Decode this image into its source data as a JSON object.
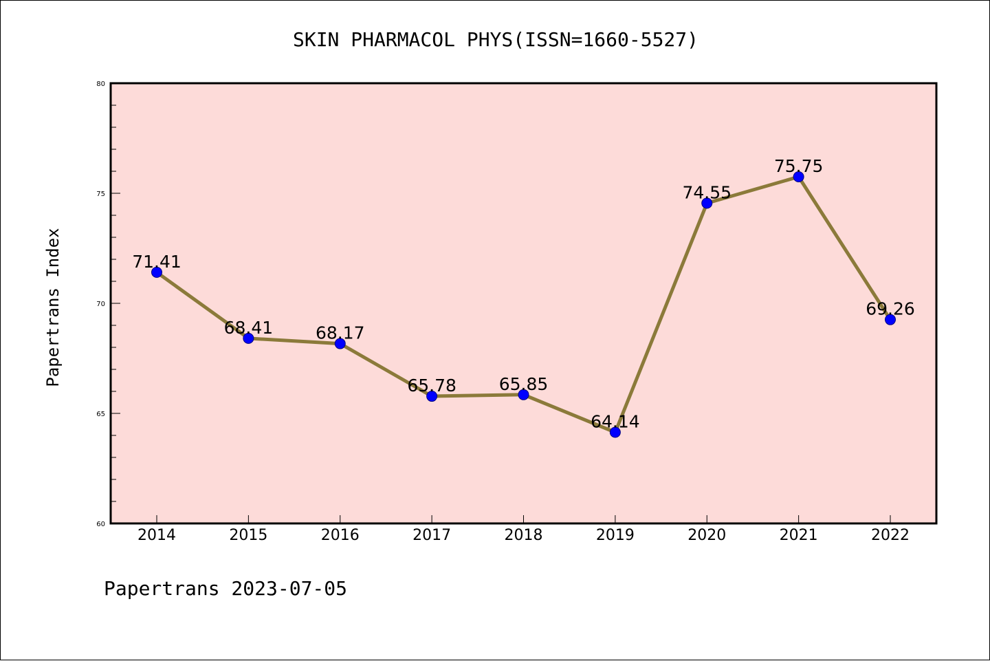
{
  "colors": {
    "plot_background": "#FDDBD9",
    "line": "#8B7A3A",
    "marker_fill": "#0000FF",
    "marker_edge": "#000080"
  },
  "chart_data": {
    "type": "line",
    "title": "SKIN PHARMACOL PHYS(ISSN=1660-5527)",
    "xlabel": "",
    "ylabel": "Papertrans Index",
    "footer": "Papertrans 2023-07-05",
    "categories": [
      "2014",
      "2015",
      "2016",
      "2017",
      "2018",
      "2019",
      "2020",
      "2021",
      "2022"
    ],
    "values": [
      71.41,
      68.41,
      68.17,
      65.78,
      65.85,
      64.14,
      74.55,
      75.75,
      69.26
    ],
    "data_labels": [
      "71.41",
      "68.41",
      "68.17",
      "65.78",
      "65.85",
      "64.14",
      "74.55",
      "75.75",
      "69.26"
    ],
    "ylim": [
      60,
      80
    ],
    "yticks": [
      "60",
      "65",
      "70",
      "75",
      "80"
    ],
    "ytick_values": [
      60,
      65,
      70,
      75,
      80
    ],
    "minor_tick_step": 1,
    "grid": false,
    "legend": "none"
  }
}
